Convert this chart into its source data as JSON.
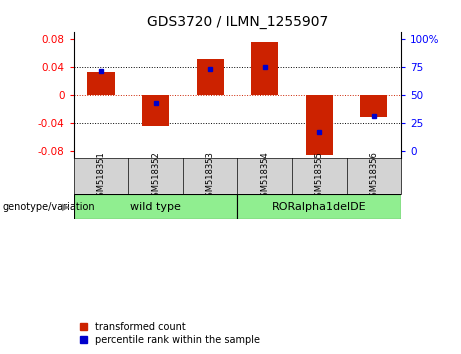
{
  "title": "GDS3720 / ILMN_1255907",
  "samples": [
    "GSM518351",
    "GSM518352",
    "GSM518353",
    "GSM518354",
    "GSM518355",
    "GSM518356"
  ],
  "group_labels": [
    "wild type",
    "RORalpha1delDE"
  ],
  "transformed_counts": [
    0.033,
    -0.044,
    0.052,
    0.075,
    -0.085,
    -0.032
  ],
  "percentile_ranks": [
    0.034,
    -0.012,
    0.037,
    0.04,
    -0.053,
    -0.03
  ],
  "ylim": [
    -0.09,
    0.09
  ],
  "yticks_left": [
    -0.08,
    -0.04,
    0,
    0.04,
    0.08
  ],
  "yticks_right": [
    0,
    25,
    50,
    75,
    100
  ],
  "yticks_right_pos": [
    -0.08,
    -0.04,
    0,
    0.04,
    0.08
  ],
  "bar_color": "#CC2200",
  "dot_color": "#0000CC",
  "zero_line_color": "#CC2200",
  "background_label": "#D3D3D3",
  "background_group": "#90EE90",
  "bar_width": 0.5,
  "legend_labels": [
    "transformed count",
    "percentile rank within the sample"
  ],
  "group_row_label": "genotype/variation"
}
